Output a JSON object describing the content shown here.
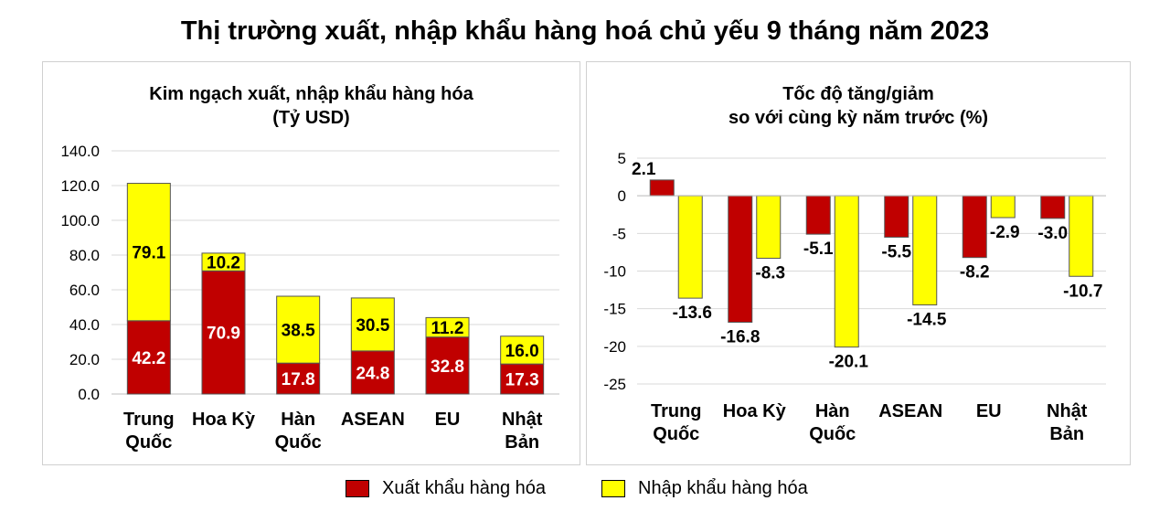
{
  "title": "Thị trường xuất, nhập khẩu hàng hoá chủ yếu 9 tháng năm 2023",
  "colors": {
    "export": "#c00000",
    "import": "#ffff00",
    "grid": "#d9d9d9",
    "axis": "#bfbfbf"
  },
  "legend": {
    "export_label": "Xuất khẩu hàng hóa",
    "import_label": "Nhập khẩu hàng hóa"
  },
  "chart_data": [
    {
      "type": "bar",
      "stacked": true,
      "title": "Kim ngạch xuất, nhập khẩu hàng hóa",
      "subtitle": "(Tỷ USD)",
      "categories": [
        [
          "Trung",
          "Quốc"
        ],
        [
          "Hoa Kỳ"
        ],
        [
          "Hàn",
          "Quốc"
        ],
        [
          "ASEAN"
        ],
        [
          "EU"
        ],
        [
          "Nhật",
          "Bản"
        ]
      ],
      "series": [
        {
          "name": "Xuất khẩu hàng hóa",
          "values": [
            42.2,
            70.9,
            17.8,
            24.8,
            32.8,
            17.3
          ],
          "labels": [
            "42.2",
            "70.9",
            "17.8",
            "24.8",
            "32.8",
            "17.3"
          ]
        },
        {
          "name": "Nhập khẩu hàng hóa",
          "values": [
            79.1,
            10.2,
            38.5,
            30.5,
            11.2,
            16.0
          ],
          "labels": [
            "79.1",
            "10.2",
            "38.5",
            "30.5",
            "11.2",
            "16.0"
          ]
        }
      ],
      "ylim": [
        0,
        140
      ],
      "yticks": [
        "0.0",
        "20.0",
        "40.0",
        "60.0",
        "80.0",
        "100.0",
        "120.0",
        "140.0"
      ],
      "grid": true
    },
    {
      "type": "bar",
      "stacked": false,
      "title": "Tốc độ tăng/giảm",
      "subtitle": "so với cùng kỳ năm trước (%)",
      "categories": [
        [
          "Trung",
          "Quốc"
        ],
        [
          "Hoa Kỳ"
        ],
        [
          "Hàn",
          "Quốc"
        ],
        [
          "ASEAN"
        ],
        [
          "EU"
        ],
        [
          "Nhật",
          "Bản"
        ]
      ],
      "series": [
        {
          "name": "Xuất khẩu hàng hóa",
          "values": [
            2.1,
            -16.8,
            -5.1,
            -5.5,
            -8.2,
            -3.0
          ],
          "labels": [
            "2.1",
            "-16.8",
            "-5.1",
            "-5.5",
            "-8.2",
            "-3.0"
          ]
        },
        {
          "name": "Nhập khẩu hàng hóa",
          "values": [
            -13.6,
            -8.3,
            -20.1,
            -14.5,
            -2.9,
            -10.7
          ],
          "labels": [
            "-13.6",
            "-8.3",
            "-20.1",
            "-14.5",
            "-2.9",
            "-10.7"
          ]
        }
      ],
      "ylim": [
        -25,
        5
      ],
      "yticks": [
        "-25",
        "-20",
        "-15",
        "-10",
        "-5",
        "0",
        "5"
      ],
      "grid": true
    }
  ]
}
